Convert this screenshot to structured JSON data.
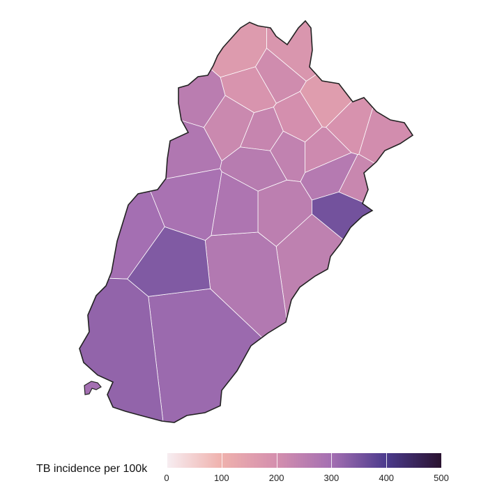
{
  "chart_data": {
    "type": "choropleth",
    "legend": {
      "title": "TB incidence per 100k",
      "min": 0,
      "max": 500,
      "ticks": [
        0,
        100,
        200,
        300,
        400,
        500
      ],
      "tick_labels": [
        "0",
        "100",
        "200",
        "300",
        "400",
        "500"
      ],
      "colors": [
        "#f7eef2",
        "#efb1ad",
        "#d48fae",
        "#a46fb2",
        "#4b3a8c",
        "#2a1330"
      ]
    },
    "regions": [
      {
        "value": 160
      },
      {
        "value": 165
      },
      {
        "value": 180
      },
      {
        "value": 185
      },
      {
        "value": 190
      },
      {
        "value": 200
      },
      {
        "value": 205
      },
      {
        "value": 210
      },
      {
        "value": 215
      },
      {
        "value": 220
      },
      {
        "value": 225
      },
      {
        "value": 230
      },
      {
        "value": 240
      },
      {
        "value": 245
      },
      {
        "value": 250
      },
      {
        "value": 255
      },
      {
        "value": 260
      },
      {
        "value": 265
      },
      {
        "value": 270
      },
      {
        "value": 275
      },
      {
        "value": 280
      },
      {
        "value": 290
      },
      {
        "value": 300
      },
      {
        "value": 310
      },
      {
        "value": 320
      },
      {
        "value": 340
      },
      {
        "value": 355
      }
    ]
  }
}
